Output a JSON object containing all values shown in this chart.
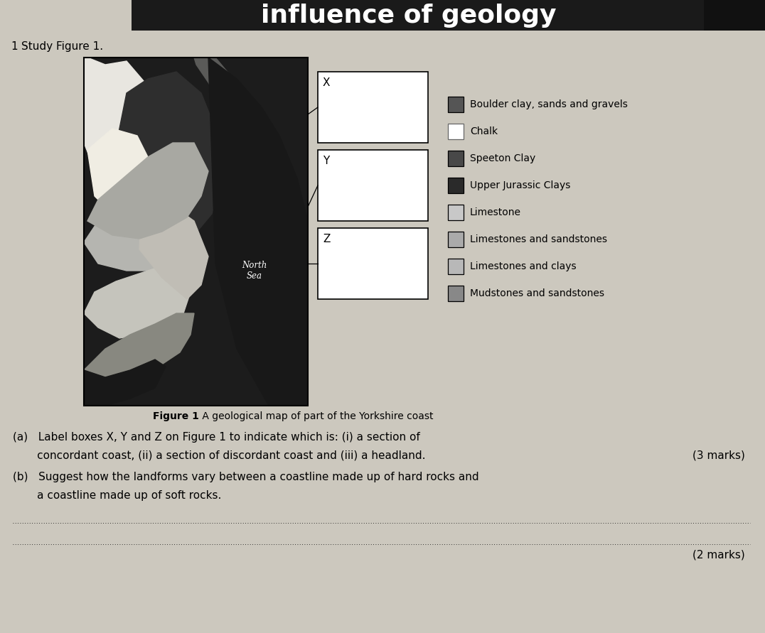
{
  "title": "influence of geology",
  "study_text": "Study Figure 1.",
  "figure_caption_bold": "Figure 1",
  "figure_caption_rest": " A geological map of part of the Yorkshire coast",
  "north_sea_label": "North\nSea",
  "box_labels": [
    "X",
    "Y",
    "Z"
  ],
  "legend_items": [
    {
      "color": "#555555",
      "label": "Boulder clay, sands and gravels"
    },
    {
      "color": "#ffffff",
      "label": "Chalk"
    },
    {
      "color": "#484848",
      "label": "Speeton Clay"
    },
    {
      "color": "#2a2a2a",
      "label": "Upper Jurassic Clays"
    },
    {
      "color": "#c8c8c8",
      "label": "Limestone"
    },
    {
      "color": "#aaaaaa",
      "label": "Limestones and sandstones"
    },
    {
      "color": "#b8b8b8",
      "label": "Limestones and clays"
    },
    {
      "color": "#888888",
      "label": "Mudstones and sandstones"
    }
  ],
  "line_a1": "(a)   Label boxes X, Y and Z on Figure 1 to indicate which is: (i) a section of",
  "line_a2": "       concordant coast, (ii) a section of discordant coast and (iii) a headland.",
  "marks_a": "(3 marks)",
  "line_b1": "(b)   Suggest how the landforms vary between a coastline made up of hard rocks and",
  "line_b2": "       a coastline made up of soft rocks.",
  "marks_b": "(2 marks)",
  "page_bg": "#ccc8be"
}
